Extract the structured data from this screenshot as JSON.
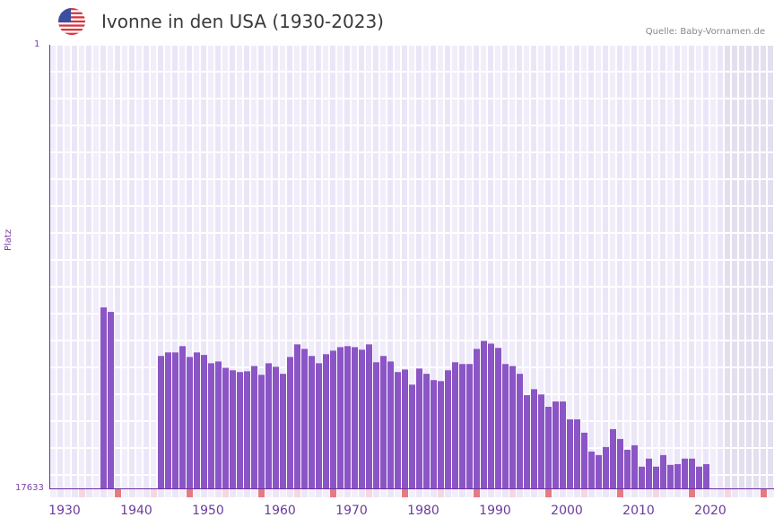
{
  "header": {
    "title": "Ivonne in den USA (1930-2023)",
    "source": "Quelle: Baby-Vornamen.de",
    "flag_icon": "us-flag-icon"
  },
  "colors": {
    "bar": "#8b55c6",
    "grid_bg_a": "#f1edfa",
    "grid_bg_b": "#ebe6f7",
    "future_bg": "#e3dfee",
    "axis": "#6e2ea0",
    "decade_marker": "#e57a82",
    "half_decade_marker": "#f6d6df"
  },
  "chart_data": {
    "type": "bar",
    "title": "Ivonne in den USA (1930-2023)",
    "xlabel": "",
    "ylabel": "Platz",
    "y_inverted": true,
    "ylim": [
      17633,
      1
    ],
    "y_ticks": [
      "1",
      "17633"
    ],
    "x_ticks": [
      "1930",
      "1940",
      "1950",
      "1960",
      "1970",
      "1980",
      "1990",
      "2000",
      "2010",
      "2020"
    ],
    "x_range": [
      1930,
      2030
    ],
    "grid": true,
    "categories": [
      1937,
      1938,
      1945,
      1946,
      1947,
      1948,
      1949,
      1950,
      1951,
      1952,
      1953,
      1954,
      1955,
      1956,
      1957,
      1958,
      1959,
      1960,
      1961,
      1962,
      1963,
      1964,
      1965,
      1966,
      1967,
      1968,
      1969,
      1970,
      1971,
      1972,
      1973,
      1974,
      1975,
      1976,
      1977,
      1978,
      1979,
      1980,
      1981,
      1982,
      1983,
      1984,
      1985,
      1986,
      1987,
      1988,
      1989,
      1990,
      1991,
      1992,
      1993,
      1994,
      1995,
      1996,
      1997,
      1998,
      1999,
      2000,
      2001,
      2002,
      2003,
      2004,
      2005,
      2006,
      2007,
      2008,
      2009,
      2010,
      2011,
      2012,
      2013,
      2014,
      2015,
      2016,
      2017,
      2018,
      2019,
      2020,
      2021
    ],
    "values": [
      10440,
      10620,
      12370,
      12230,
      12230,
      11980,
      12410,
      12230,
      12330,
      12660,
      12590,
      12840,
      12940,
      13010,
      12980,
      12770,
      13120,
      12660,
      12800,
      13080,
      12410,
      11910,
      12090,
      12370,
      12660,
      12300,
      12160,
      12020,
      11980,
      12020,
      12120,
      11910,
      12620,
      12370,
      12590,
      13010,
      12910,
      13510,
      12870,
      13080,
      13330,
      13370,
      12940,
      12620,
      12690,
      12690,
      12090,
      11770,
      11880,
      12050,
      12690,
      12770,
      13080,
      13930,
      13690,
      13900,
      14390,
      14180,
      14180,
      14890,
      14890,
      15420,
      16170,
      16310,
      15990,
      15280,
      15670,
      16100,
      15920,
      16770,
      16450,
      16770,
      16310,
      16700,
      16670,
      16450,
      16450,
      16770,
      16670
    ]
  },
  "axis": {
    "y_top": "1",
    "y_bottom": "17633",
    "y_label": "Platz",
    "x_labels": [
      "1930",
      "1940",
      "1950",
      "1960",
      "1970",
      "1980",
      "1990",
      "2000",
      "2010",
      "2020"
    ]
  }
}
